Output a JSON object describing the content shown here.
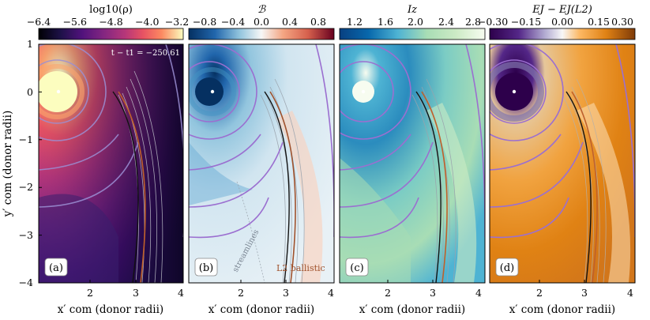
{
  "figure": {
    "x_axis_label": "x′ com (donor radii)",
    "y_axis_label": "y′ com (donor radii)"
  },
  "chart_data": [
    {
      "type": "heatmap",
      "panel_label": "(a)",
      "colorbar_label": "log10(ρ)",
      "colormap": "magma",
      "colorbar_ticks": [
        "−6.4",
        "−5.6",
        "−4.8",
        "−4.0",
        "−3.2"
      ],
      "colorbar_range": [
        -6.4,
        -3.2
      ],
      "xlim": [
        1.2,
        4.0
      ],
      "ylim": [
        -4.0,
        1.0
      ],
      "x_ticks": [
        "2",
        "3",
        "4"
      ],
      "y_ticks": [
        "1",
        "0",
        "−1",
        "−2",
        "−3",
        "−4"
      ],
      "annotations": [
        "t − t1 = −250.61"
      ],
      "accretor_position": [
        1.55,
        0.0
      ]
    },
    {
      "type": "heatmap",
      "panel_label": "(b)",
      "colorbar_label": "ℬ",
      "colormap": "diverging blue-white-red",
      "colorbar_ticks": [
        "−0.8",
        "−0.4",
        "0.0",
        "0.4",
        "0.8"
      ],
      "colorbar_range": [
        -0.9,
        0.9
      ],
      "xlim": [
        1.2,
        4.0
      ],
      "ylim": [
        -4.0,
        1.0
      ],
      "x_ticks": [
        "2",
        "3",
        "4"
      ],
      "annotations": [
        "streamlines",
        "L2 ballistic"
      ],
      "accretor_position": [
        1.55,
        0.0
      ]
    },
    {
      "type": "heatmap",
      "panel_label": "(c)",
      "colorbar_label": "Iz",
      "colormap": "GnBu",
      "colorbar_ticks": [
        "1.2",
        "1.6",
        "2.0",
        "2.4",
        "2.8"
      ],
      "colorbar_range": [
        1.1,
        3.0
      ],
      "xlim": [
        1.2,
        4.0
      ],
      "ylim": [
        -4.0,
        1.0
      ],
      "x_ticks": [
        "2",
        "3",
        "4"
      ],
      "accretor_position": [
        1.55,
        0.0
      ]
    },
    {
      "type": "heatmap",
      "panel_label": "(d)",
      "colorbar_label": "EJ − EJ(L2)",
      "colormap": "PuOr",
      "colorbar_ticks": [
        "−0.30",
        "−0.15",
        "0.00",
        "0.15",
        "0.30"
      ],
      "colorbar_range": [
        -0.3,
        0.3
      ],
      "xlim": [
        1.2,
        4.0
      ],
      "ylim": [
        -4.0,
        1.0
      ],
      "x_ticks": [
        "2",
        "3",
        "4"
      ],
      "accretor_position": [
        1.55,
        0.0
      ]
    }
  ],
  "overlays": {
    "l2_ballistic_color": "#c0602a",
    "reference_trajectory_color": "#111111",
    "contour_color_purple": "#9b6fd0",
    "streamline_color": "#9aa3ad"
  }
}
